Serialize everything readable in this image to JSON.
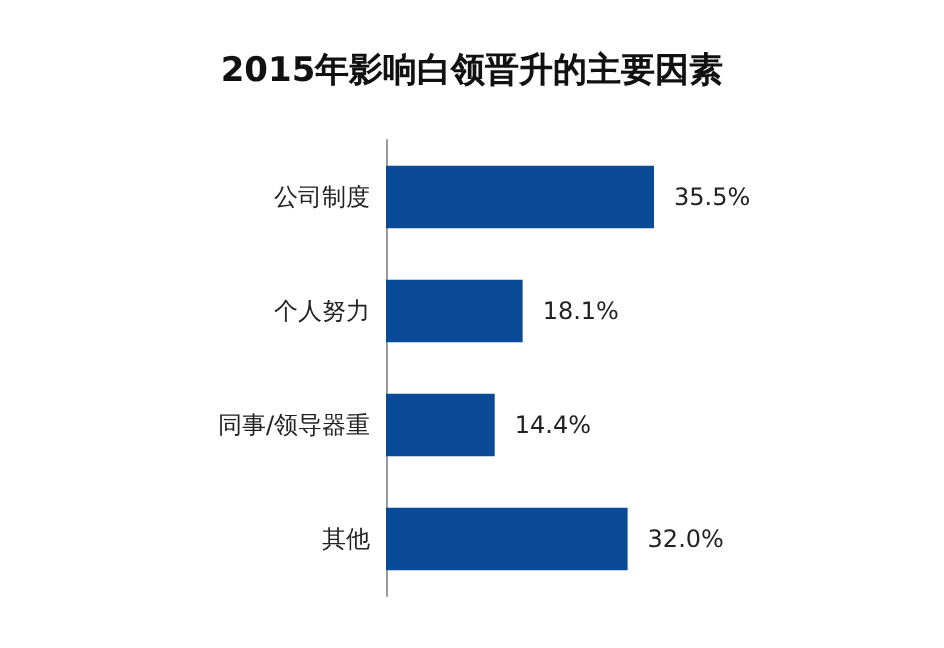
{
  "chart_data": {
    "type": "bar",
    "orientation": "horizontal",
    "title": "2015年影响白领晋升的主要因素",
    "categories": [
      "公司制度",
      "个人努力",
      "同事/领导器重",
      "其他"
    ],
    "values": [
      35.5,
      18.1,
      14.4,
      32.0
    ],
    "value_labels": [
      "35.5%",
      "18.1%",
      "14.4%",
      "32.0%"
    ],
    "color": "#0b4a97"
  }
}
